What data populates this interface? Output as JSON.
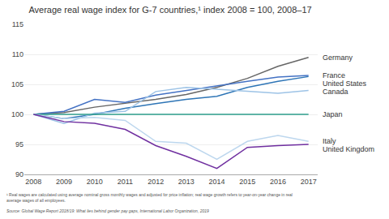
{
  "chart_data": {
    "type": "line",
    "title": "Average real wage index for G-7 countries,¹ index 2008 = 100, 2008–17",
    "annotations": [
      "¹ Real wages are calculated using average nominal gross monthly wages and adjusted for price inflation; real wage growth refers to year-on-year change in real\naverage wages of all employees.",
      "Source: Global Wage Report 2018/19: What lies behind gender pay gaps, International Labor Organization, 2019"
    ],
    "x": [
      2008,
      2009,
      2010,
      2011,
      2012,
      2013,
      2014,
      2015,
      2016,
      2017
    ],
    "xlim": [
      2007.7,
      2017.3
    ],
    "xticks": [
      2008,
      2009,
      2010,
      2011,
      2012,
      2013,
      2014,
      2015,
      2016,
      2017
    ],
    "ylim": [
      90,
      115
    ],
    "yticks": [
      90,
      95,
      100,
      105,
      110,
      115
    ],
    "grid": true,
    "series": [
      {
        "name": "Germany",
        "color": "#666666",
        "values": [
          100,
          100.3,
          101.2,
          101.8,
          102.5,
          103.3,
          104.5,
          106.0,
          108.0,
          109.5
        ]
      },
      {
        "name": "France",
        "color": "#4472c4",
        "values": [
          100,
          100.5,
          102.5,
          102.0,
          103.2,
          104.0,
          104.8,
          105.5,
          106.2,
          106.5
        ]
      },
      {
        "name": "United States",
        "color": "#2e75b6",
        "values": [
          100,
          99.3,
          100.0,
          101.0,
          101.8,
          102.5,
          103.0,
          104.5,
          105.5,
          106.3
        ]
      },
      {
        "name": "Canada",
        "color": "#9dc3e6",
        "values": [
          100,
          98.5,
          100.2,
          100.5,
          103.8,
          104.5,
          104.2,
          103.8,
          103.5,
          104.0
        ]
      },
      {
        "name": "Japan",
        "color": "#2e9e8c",
        "values": [
          100,
          100.0,
          100.0,
          100.0,
          100.0,
          100.0,
          100.0,
          100.0,
          100.0,
          100.0
        ]
      },
      {
        "name": "Italy",
        "color": "#bdd7ee",
        "values": [
          100,
          99.3,
          99.5,
          99.0,
          95.5,
          95.2,
          92.5,
          95.5,
          96.5,
          95.5
        ]
      },
      {
        "name": "United Kingdom",
        "color": "#7030a0",
        "values": [
          100,
          98.8,
          98.5,
          97.5,
          94.8,
          93.0,
          91.0,
          94.5,
          94.8,
          95.0
        ]
      }
    ]
  }
}
